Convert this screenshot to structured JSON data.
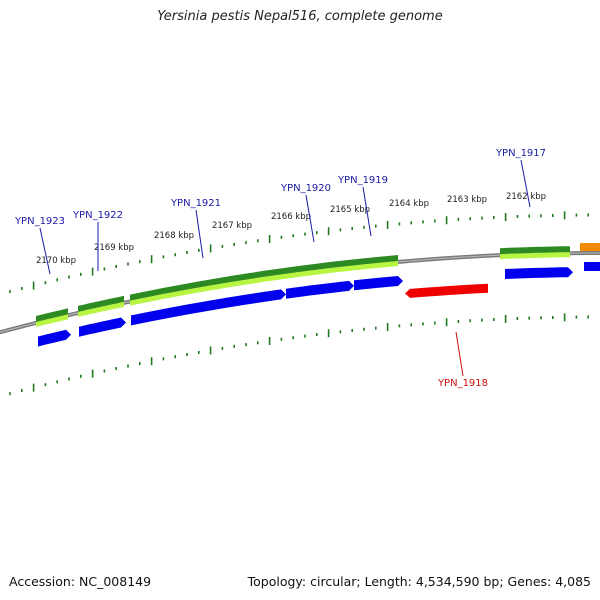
{
  "title": "Yersinia pestis Nepal516, complete genome",
  "footer": {
    "accession": "Accession: NC_008149",
    "summary": "Topology: circular; Length: 4,534,590 bp; Genes: 4,085"
  },
  "colors": {
    "forward_gene": "#0000ee",
    "reverse_gene": "#ee0000",
    "cds_dark": "#2d8a22",
    "cds_light": "#b7f542",
    "backbone": "#7a7a7a",
    "tick": "#1f7a1f",
    "label_forward": "#1a1aa8",
    "label_reverse": "#cc1111",
    "orange_feature": "#f28a00"
  },
  "scale_labels": [
    "2170 kbp",
    "2169 kbp",
    "2168 kbp",
    "2167 kbp",
    "2166 kbp",
    "2165 kbp",
    "2164 kbp",
    "2163 kbp",
    "2162 kbp"
  ],
  "genes": [
    {
      "name": "YPN_1923",
      "strand": "forward"
    },
    {
      "name": "YPN_1922",
      "strand": "forward"
    },
    {
      "name": "YPN_1921",
      "strand": "forward"
    },
    {
      "name": "YPN_1920",
      "strand": "forward"
    },
    {
      "name": "YPN_1919",
      "strand": "forward"
    },
    {
      "name": "YPN_1918",
      "strand": "reverse"
    },
    {
      "name": "YPN_1917",
      "strand": "forward"
    }
  ]
}
